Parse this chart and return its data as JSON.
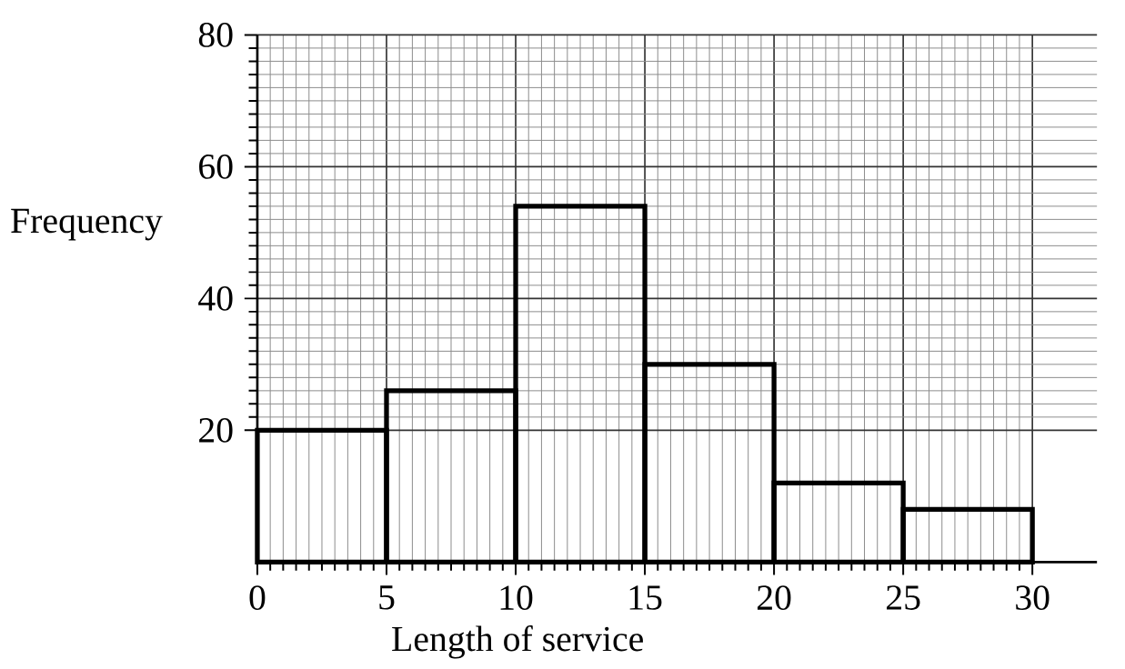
{
  "chart_data": {
    "type": "histogram",
    "xlabel": "Length of service",
    "ylabel": "Frequency",
    "bins": [
      0,
      5,
      10,
      15,
      20,
      25,
      30
    ],
    "values": [
      20,
      26,
      54,
      30,
      12,
      8
    ],
    "color": "#000000",
    "xlim": [
      0,
      32.5
    ],
    "ylim": [
      0,
      80
    ],
    "xticks": [
      0,
      5,
      10,
      15,
      20,
      25,
      30
    ],
    "yticks": [
      20,
      40,
      60,
      80
    ],
    "grid": true
  }
}
